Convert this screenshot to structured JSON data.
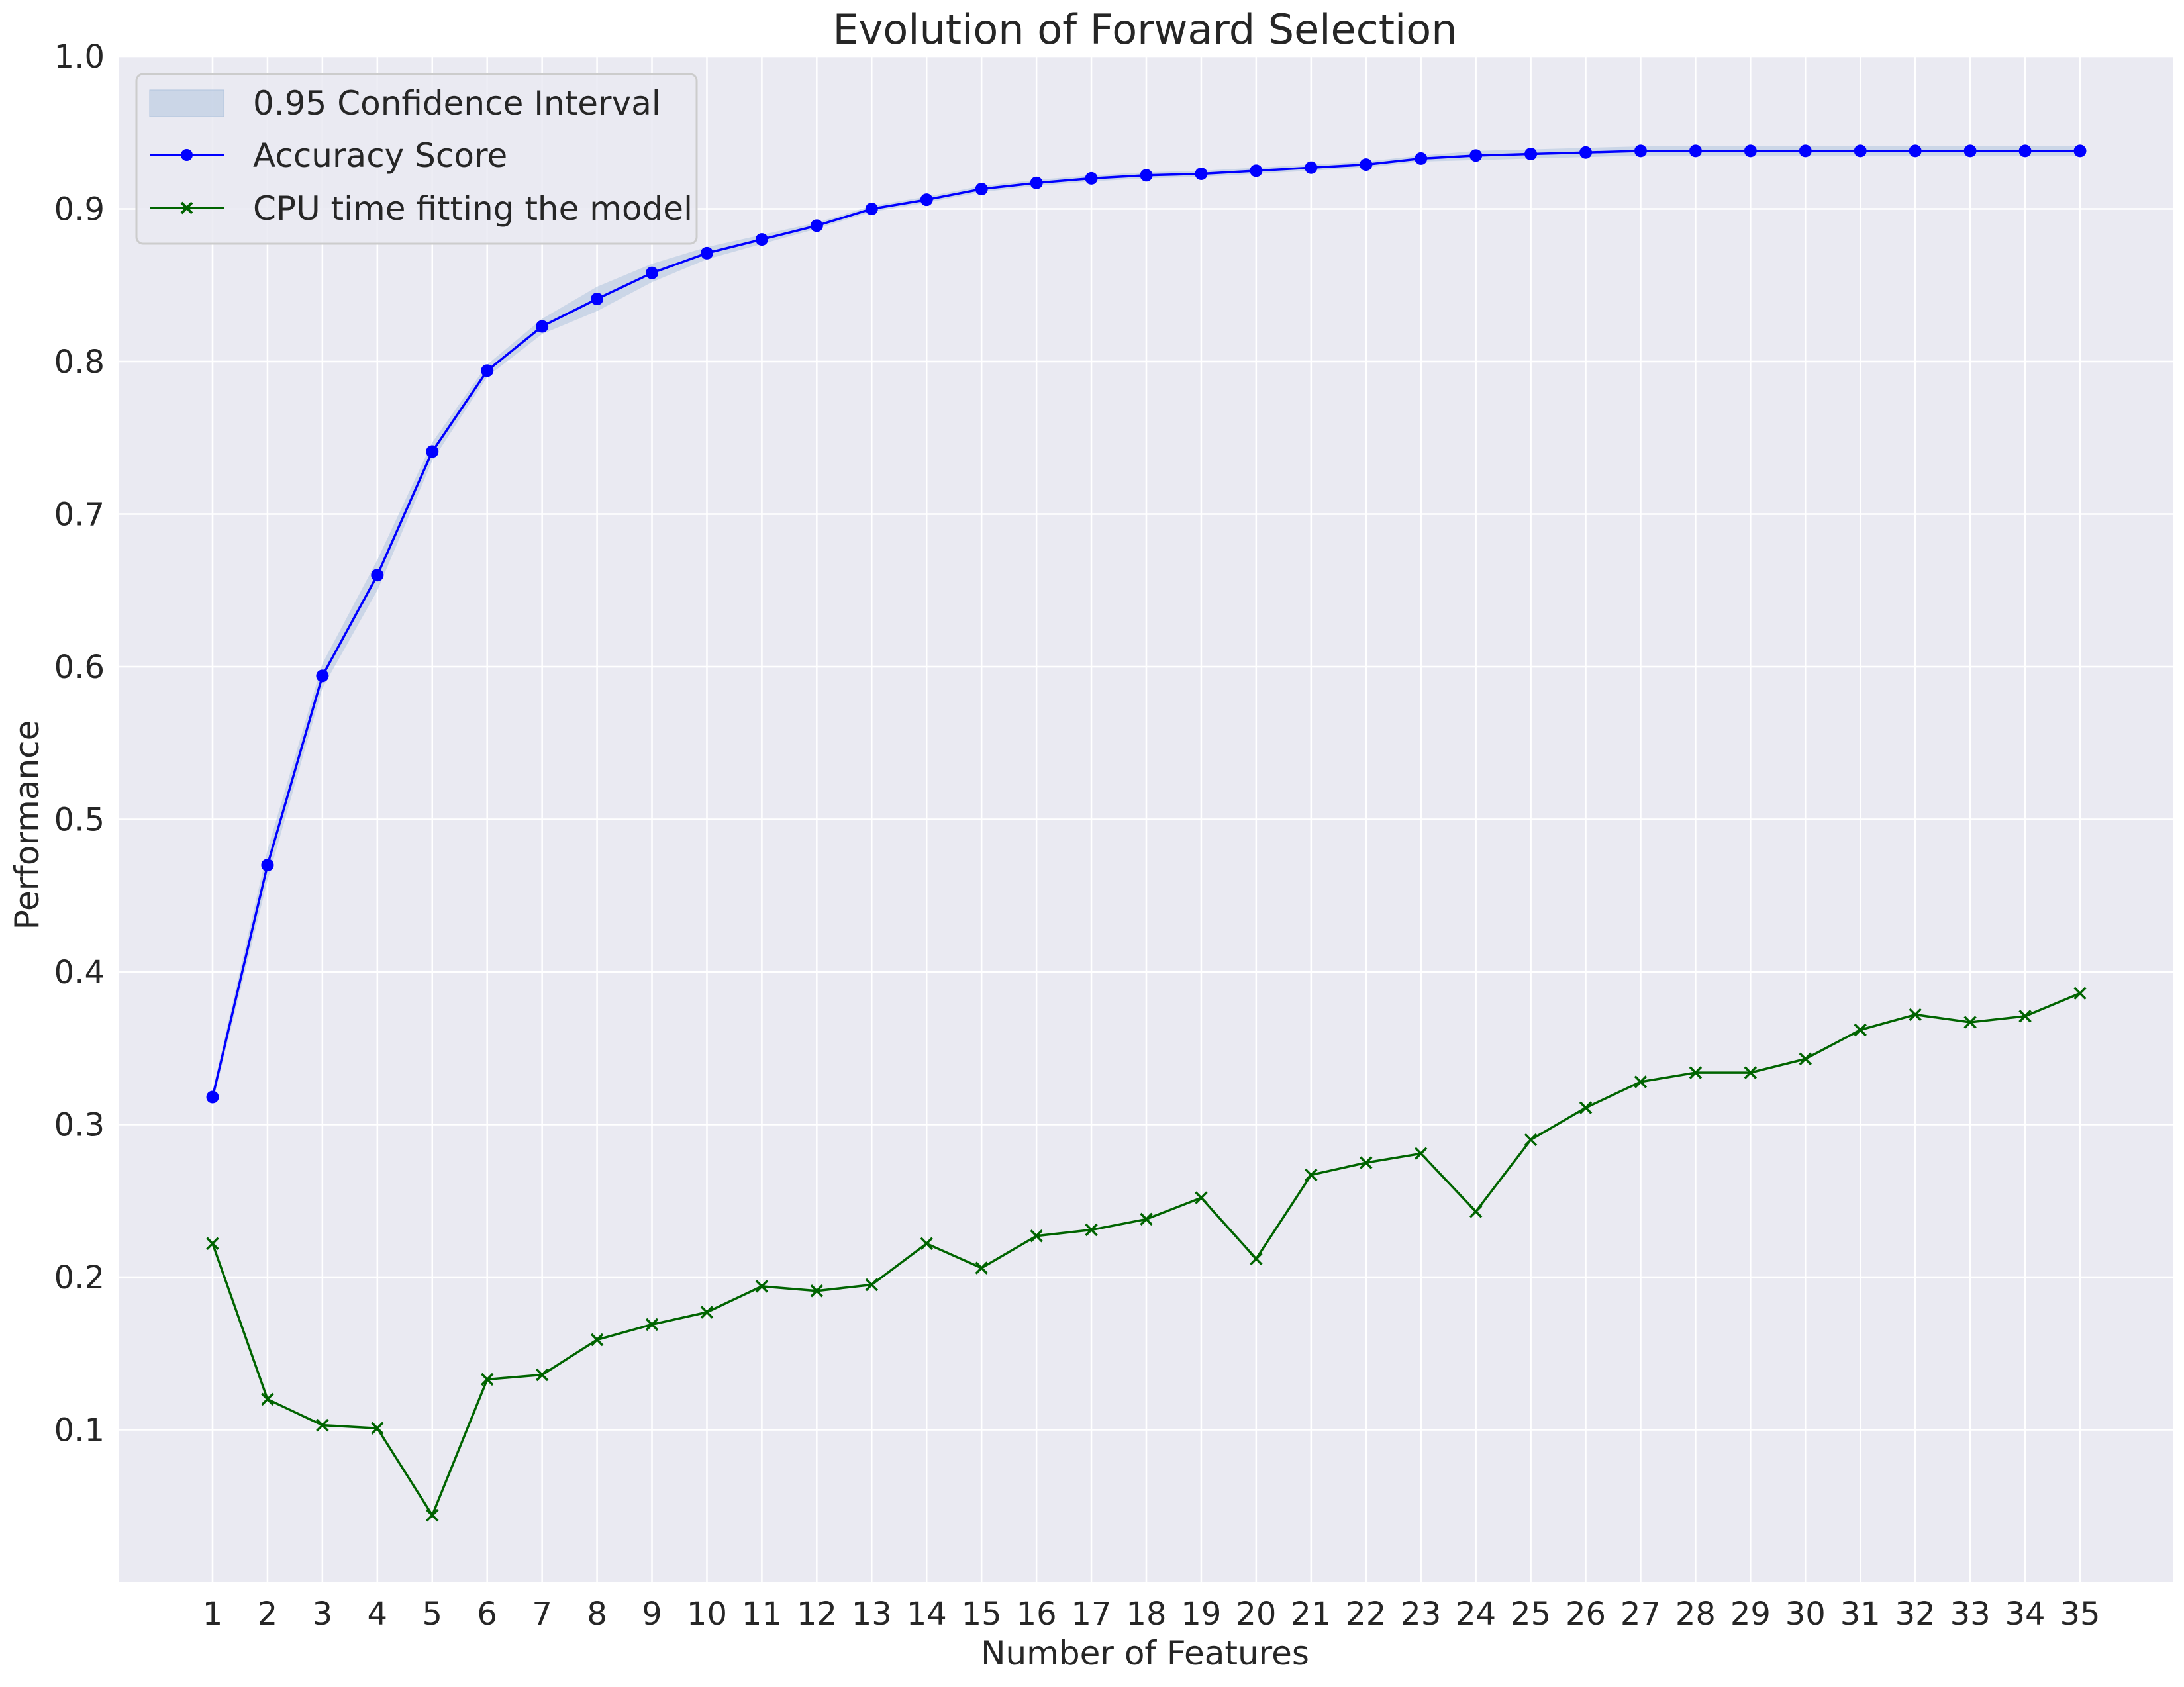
{
  "chart_data": {
    "type": "line",
    "title": "Evolution of Forward Selection",
    "xlabel": "Number of Features",
    "ylabel": "Performance",
    "x": [
      1,
      2,
      3,
      4,
      5,
      6,
      7,
      8,
      9,
      10,
      11,
      12,
      13,
      14,
      15,
      16,
      17,
      18,
      19,
      20,
      21,
      22,
      23,
      24,
      25,
      26,
      27,
      28,
      29,
      30,
      31,
      32,
      33,
      34,
      35
    ],
    "xlim": [
      -0.7,
      36.7
    ],
    "ylim": [
      0.0,
      1.0
    ],
    "yticks": [
      0.1,
      0.2,
      0.3,
      0.4,
      0.5,
      0.6,
      0.7,
      0.8,
      0.9,
      1.0
    ],
    "ytick_labels": [
      "0.1",
      "0.2",
      "0.3",
      "0.4",
      "0.5",
      "0.6",
      "0.7",
      "0.8",
      "0.9",
      "1.0"
    ],
    "grid": true,
    "legend_position": "top-left",
    "background": "#eaeaf2",
    "series": [
      {
        "name": "Accuracy Score",
        "kind": "line",
        "marker": "circle",
        "color": "#0000ff",
        "values": [
          0.318,
          0.47,
          0.594,
          0.66,
          0.741,
          0.794,
          0.823,
          0.841,
          0.858,
          0.871,
          0.88,
          0.889,
          0.9,
          0.906,
          0.913,
          0.917,
          0.92,
          0.922,
          0.923,
          0.925,
          0.927,
          0.929,
          0.933,
          0.935,
          0.936,
          0.937,
          0.938,
          0.938,
          0.938,
          0.938,
          0.938,
          0.938,
          0.938,
          0.938,
          0.938
        ]
      },
      {
        "name": "CPU time fitting the model",
        "kind": "line",
        "marker": "x",
        "color": "#006400",
        "values": [
          0.222,
          0.12,
          0.103,
          0.101,
          0.044,
          0.133,
          0.136,
          0.159,
          0.169,
          0.177,
          0.194,
          0.191,
          0.195,
          0.222,
          0.206,
          0.227,
          0.231,
          0.238,
          0.252,
          0.212,
          0.267,
          0.275,
          0.281,
          0.243,
          0.29,
          0.311,
          0.328,
          0.334,
          0.334,
          0.343,
          0.362,
          0.372,
          0.367,
          0.371,
          0.386
        ]
      }
    ],
    "band": {
      "name": "0.95 Confidence Interval",
      "color": "#b0c4de",
      "lower": [
        0.314,
        0.46,
        0.586,
        0.65,
        0.735,
        0.79,
        0.818,
        0.833,
        0.852,
        0.867,
        0.877,
        0.887,
        0.898,
        0.904,
        0.911,
        0.915,
        0.918,
        0.92,
        0.921,
        0.923,
        0.925,
        0.927,
        0.931,
        0.932,
        0.933,
        0.934,
        0.935,
        0.935,
        0.935,
        0.935,
        0.935,
        0.935,
        0.935,
        0.935,
        0.935
      ],
      "upper": [
        0.322,
        0.48,
        0.602,
        0.67,
        0.747,
        0.798,
        0.828,
        0.849,
        0.864,
        0.875,
        0.883,
        0.891,
        0.902,
        0.908,
        0.915,
        0.919,
        0.922,
        0.924,
        0.925,
        0.927,
        0.929,
        0.931,
        0.935,
        0.938,
        0.939,
        0.94,
        0.941,
        0.941,
        0.941,
        0.941,
        0.941,
        0.941,
        0.941,
        0.941,
        0.941
      ]
    }
  }
}
